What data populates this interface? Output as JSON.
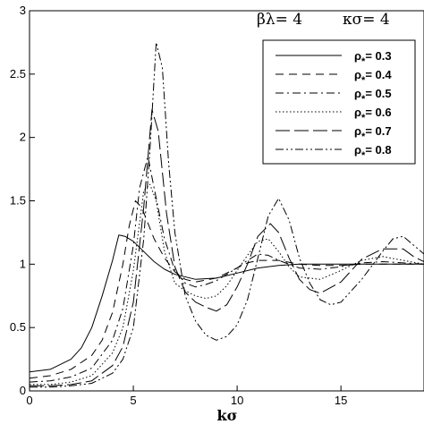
{
  "chart_data": {
    "type": "line",
    "xlabel": "kσ",
    "ylabel": "",
    "xlim": [
      0,
      19
    ],
    "ylim": [
      0,
      3
    ],
    "x_ticks": [
      0,
      5,
      10,
      15
    ],
    "y_ticks": [
      0,
      0.5,
      1,
      1.5,
      2,
      2.5,
      3
    ],
    "annotations": [
      {
        "text": "βλ= 4",
        "position": "top-center"
      },
      {
        "text": "κσ= 4",
        "position": "top-right"
      }
    ],
    "legend_position": "top-right",
    "series": [
      {
        "name": "ρ*= 0.3",
        "dash": "solid",
        "x": [
          0,
          1,
          2,
          2.5,
          3,
          3.5,
          4,
          4.3,
          4.6,
          5,
          5.5,
          6,
          6.5,
          7,
          8,
          9,
          10,
          11,
          12,
          13,
          14,
          15,
          16,
          17,
          18,
          19
        ],
        "y": [
          0.15,
          0.17,
          0.25,
          0.34,
          0.5,
          0.75,
          1.03,
          1.23,
          1.22,
          1.18,
          1.1,
          1.02,
          0.96,
          0.92,
          0.88,
          0.89,
          0.93,
          0.97,
          0.99,
          1.0,
          1.0,
          1.0,
          1.0,
          1.0,
          1.0,
          1.0
        ]
      },
      {
        "name": "ρ*= 0.4",
        "dash": "dash",
        "x": [
          0,
          1,
          2,
          3,
          3.5,
          4,
          4.5,
          4.8,
          5.1,
          5.4,
          6,
          6.5,
          7,
          7.5,
          8,
          9,
          10,
          10.5,
          11,
          12,
          13,
          14,
          15,
          16,
          17,
          18,
          19
        ],
        "y": [
          0.1,
          0.12,
          0.17,
          0.28,
          0.4,
          0.62,
          1.0,
          1.3,
          1.5,
          1.45,
          1.2,
          1.05,
          0.94,
          0.88,
          0.86,
          0.89,
          0.97,
          1.01,
          1.03,
          1.03,
          1.0,
          0.99,
          0.99,
          1.0,
          1.0,
          1.0,
          1.0
        ]
      },
      {
        "name": "ρ*= 0.5",
        "dash": "dashdot",
        "x": [
          0,
          1,
          2,
          3,
          4,
          4.5,
          5,
          5.3,
          5.7,
          6,
          6.5,
          7,
          7.5,
          8,
          8.5,
          9,
          10,
          10.5,
          11,
          11.5,
          12,
          13,
          14,
          15,
          16,
          17,
          18,
          19
        ],
        "y": [
          0.07,
          0.08,
          0.11,
          0.18,
          0.4,
          0.65,
          1.15,
          1.6,
          1.85,
          1.6,
          1.2,
          0.95,
          0.85,
          0.82,
          0.84,
          0.87,
          0.97,
          1.03,
          1.08,
          1.07,
          1.03,
          0.97,
          0.96,
          0.98,
          1.01,
          1.02,
          1.01,
          1.0
        ]
      },
      {
        "name": "ρ*= 0.6",
        "dash": "dot",
        "x": [
          0,
          1,
          2,
          3,
          4,
          4.5,
          5,
          5.5,
          5.8,
          6.1,
          6.5,
          7,
          7.5,
          8,
          8.5,
          9,
          9.5,
          10,
          10.5,
          11,
          11.5,
          12,
          12.5,
          13,
          14,
          15,
          16,
          17,
          18,
          19
        ],
        "y": [
          0.05,
          0.05,
          0.07,
          0.12,
          0.3,
          0.5,
          0.95,
          1.58,
          1.63,
          1.5,
          1.1,
          0.85,
          0.79,
          0.75,
          0.73,
          0.75,
          0.83,
          0.95,
          1.07,
          1.18,
          1.2,
          1.1,
          0.98,
          0.9,
          0.88,
          0.95,
          1.03,
          1.06,
          1.03,
          1.0
        ]
      },
      {
        "name": "ρ*= 0.7",
        "dash": "longdash",
        "x": [
          0,
          1,
          2,
          3,
          4,
          4.5,
          5,
          5.5,
          5.9,
          6.2,
          6.6,
          7,
          7.5,
          8,
          8.5,
          9,
          9.5,
          10,
          10.5,
          11,
          11.6,
          12,
          12.5,
          13,
          13.5,
          14,
          15,
          16,
          17,
          18,
          18.5,
          19
        ],
        "y": [
          0.04,
          0.04,
          0.05,
          0.08,
          0.2,
          0.35,
          0.7,
          1.45,
          2.22,
          2.05,
          1.4,
          0.98,
          0.78,
          0.7,
          0.66,
          0.63,
          0.68,
          0.82,
          1.0,
          1.22,
          1.32,
          1.25,
          1.05,
          0.88,
          0.8,
          0.77,
          0.86,
          1.04,
          1.12,
          1.12,
          1.06,
          1.02
        ]
      },
      {
        "name": "ρ*= 0.8",
        "dash": "dashdotdot",
        "x": [
          0,
          1,
          2,
          3,
          4,
          4.5,
          5,
          5.5,
          5.8,
          6.1,
          6.4,
          6.7,
          7,
          7.5,
          8,
          8.5,
          9,
          9.5,
          10,
          10.5,
          11,
          11.5,
          12,
          12.5,
          13,
          13.5,
          14,
          14.5,
          15,
          16,
          17,
          17.5,
          18,
          18.5,
          19
        ],
        "y": [
          0.03,
          0.03,
          0.04,
          0.06,
          0.14,
          0.25,
          0.5,
          1.2,
          1.9,
          2.75,
          2.55,
          1.8,
          1.25,
          0.75,
          0.55,
          0.44,
          0.4,
          0.43,
          0.52,
          0.72,
          1.05,
          1.38,
          1.52,
          1.35,
          1.05,
          0.85,
          0.72,
          0.68,
          0.7,
          0.88,
          1.1,
          1.2,
          1.22,
          1.15,
          1.08
        ]
      }
    ]
  }
}
